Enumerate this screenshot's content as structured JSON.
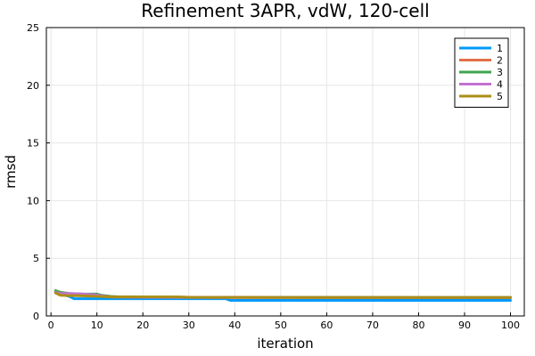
{
  "chart_data": {
    "type": "line",
    "title": "Refinement 3APR, vdW, 120-cell",
    "xlabel": "iteration",
    "ylabel": "rmsd",
    "xlim": [
      -1,
      103
    ],
    "ylim": [
      0,
      25
    ],
    "xticks": [
      0,
      10,
      20,
      30,
      40,
      50,
      60,
      70,
      80,
      90,
      100
    ],
    "yticks": [
      0,
      5,
      10,
      15,
      20,
      25
    ],
    "grid": true,
    "legend_position": "top-right",
    "series": [
      {
        "name": "1",
        "color": "#009AFA",
        "points": [
          [
            1,
            2.05
          ],
          [
            2,
            1.85
          ],
          [
            3,
            1.8
          ],
          [
            4,
            1.7
          ],
          [
            5,
            1.5
          ],
          [
            10,
            1.5
          ],
          [
            20,
            1.5
          ],
          [
            30,
            1.5
          ],
          [
            38,
            1.5
          ],
          [
            39,
            1.35
          ],
          [
            60,
            1.35
          ],
          [
            100,
            1.35
          ]
        ]
      },
      {
        "name": "2",
        "color": "#E36F47",
        "points": [
          [
            1,
            2.1
          ],
          [
            2,
            1.95
          ],
          [
            3,
            1.9
          ],
          [
            5,
            1.85
          ],
          [
            8,
            1.8
          ],
          [
            10,
            1.75
          ],
          [
            13,
            1.65
          ],
          [
            20,
            1.62
          ],
          [
            40,
            1.6
          ],
          [
            100,
            1.58
          ]
        ]
      },
      {
        "name": "3",
        "color": "#3EA44E",
        "points": [
          [
            1,
            2.2
          ],
          [
            2,
            2.05
          ],
          [
            4,
            1.95
          ],
          [
            7,
            1.9
          ],
          [
            10,
            1.9
          ],
          [
            11,
            1.8
          ],
          [
            13,
            1.7
          ],
          [
            15,
            1.65
          ],
          [
            30,
            1.62
          ],
          [
            100,
            1.6
          ]
        ]
      },
      {
        "name": "4",
        "color": "#C371D2",
        "points": [
          [
            1,
            2.05
          ],
          [
            2,
            1.95
          ],
          [
            4,
            1.95
          ],
          [
            7,
            1.9
          ],
          [
            9,
            1.85
          ],
          [
            11,
            1.75
          ],
          [
            13,
            1.65
          ],
          [
            20,
            1.62
          ],
          [
            50,
            1.6
          ],
          [
            100,
            1.6
          ]
        ]
      },
      {
        "name": "5",
        "color": "#AC8E18",
        "points": [
          [
            1,
            2.0
          ],
          [
            2,
            1.8
          ],
          [
            4,
            1.75
          ],
          [
            6,
            1.75
          ],
          [
            10,
            1.7
          ],
          [
            14,
            1.65
          ],
          [
            28,
            1.65
          ],
          [
            30,
            1.62
          ],
          [
            60,
            1.6
          ],
          [
            100,
            1.6
          ]
        ]
      }
    ]
  }
}
